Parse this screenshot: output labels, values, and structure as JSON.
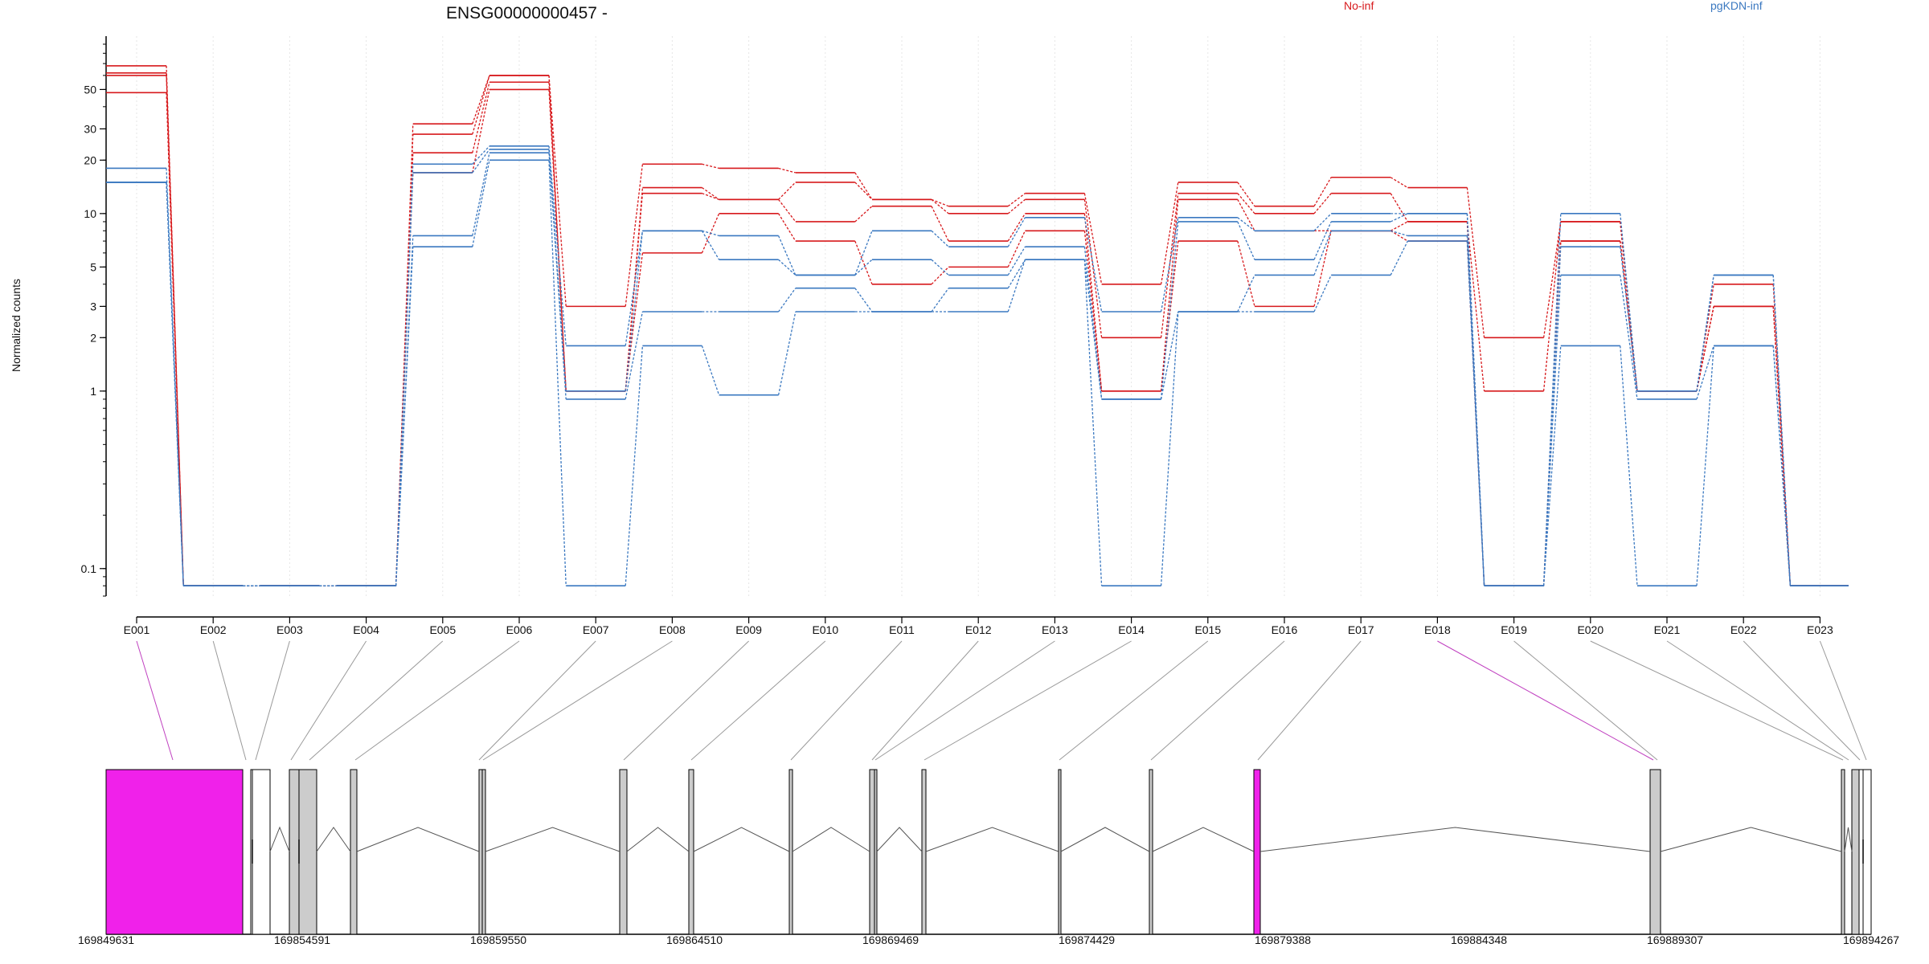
{
  "chart_data": {
    "type": "line",
    "title": "ENSG00000000457 -",
    "ylabel": "Normalized counts",
    "xlabel": "",
    "y_scale": "log",
    "ylim": [
      0.07,
      90
    ],
    "y_ticks": [
      0.1,
      1,
      2,
      3,
      5,
      10,
      20,
      30,
      50
    ],
    "y_tick_labels": [
      "0.1",
      "1",
      "2",
      "3",
      "5",
      "10",
      "20",
      "30",
      "50"
    ],
    "grid": "vertical, light",
    "legend": [
      {
        "name": "No-inf",
        "color": "#d7191c"
      },
      {
        "name": "pgKDN-inf",
        "color": "#3a78c0"
      }
    ],
    "categories": [
      "E001",
      "E002",
      "E003",
      "E004",
      "E005",
      "E006",
      "E007",
      "E008",
      "E009",
      "E010",
      "E011",
      "E012",
      "E013",
      "E014",
      "E015",
      "E016",
      "E017",
      "E018",
      "E019",
      "E020",
      "E021",
      "E022",
      "E023"
    ],
    "series": [
      {
        "group": "No-inf",
        "color": "#d7191c",
        "values": [
          68,
          0.08,
          0.08,
          0.08,
          32,
          60,
          3,
          19,
          18,
          17,
          12,
          11,
          13,
          4,
          15,
          11,
          16,
          14,
          2,
          9,
          1,
          4,
          0.08
        ]
      },
      {
        "group": "No-inf",
        "color": "#d7191c",
        "values": [
          62,
          0.08,
          0.08,
          0.08,
          28,
          60,
          1,
          14,
          12,
          15,
          12,
          10,
          12,
          2,
          13,
          10,
          13,
          9,
          1,
          9,
          1,
          3,
          0.08
        ]
      },
      {
        "group": "No-inf",
        "color": "#d7191c",
        "values": [
          60,
          0.08,
          0.08,
          0.08,
          22,
          55,
          1,
          13,
          12,
          9,
          11,
          7,
          10,
          1,
          12,
          8,
          8,
          9,
          0.08,
          7,
          1,
          3,
          0.08
        ]
      },
      {
        "group": "No-inf",
        "color": "#d7191c",
        "values": [
          48,
          0.08,
          0.08,
          0.08,
          17,
          50,
          1,
          6,
          10,
          7,
          4,
          5,
          8,
          1,
          7,
          3,
          8,
          7,
          0.08,
          7,
          1,
          3,
          0.08
        ]
      },
      {
        "group": "pgKDN-inf",
        "color": "#3a78c0",
        "values": [
          18,
          0.08,
          0.08,
          0.08,
          19,
          24,
          1.8,
          8,
          7.5,
          4.5,
          8,
          6.5,
          9.5,
          2.8,
          9.5,
          8,
          10,
          10,
          0.08,
          10,
          1,
          4.5,
          0.08
        ]
      },
      {
        "group": "pgKDN-inf",
        "color": "#3a78c0",
        "values": [
          15,
          0.08,
          0.08,
          0.08,
          17,
          23,
          1,
          8,
          5.5,
          4.5,
          5.5,
          4.5,
          6.5,
          0.9,
          9,
          5.5,
          9,
          10,
          0.08,
          6.5,
          1,
          4.5,
          0.08
        ]
      },
      {
        "group": "pgKDN-inf",
        "color": "#3a78c0",
        "values": [
          15,
          0.08,
          0.08,
          0.08,
          7.5,
          22,
          0.9,
          2.8,
          2.8,
          3.8,
          2.8,
          3.8,
          5.5,
          0.9,
          2.8,
          4.5,
          8,
          7.5,
          0.08,
          4.5,
          0.9,
          1.8,
          0.08
        ]
      },
      {
        "group": "pgKDN-inf",
        "color": "#3a78c0",
        "values": [
          15,
          0.08,
          0.08,
          0.08,
          6.5,
          20,
          0.08,
          1.8,
          0.95,
          2.8,
          2.8,
          2.8,
          5.5,
          0.08,
          2.8,
          2.8,
          4.5,
          7,
          0.08,
          1.8,
          0.08,
          1.8,
          0.08
        ]
      }
    ],
    "gene_model": {
      "coordinate_ticks": [
        "169849631",
        "169854591",
        "169859550",
        "169864510",
        "169869469",
        "169874429",
        "169879388",
        "169884348",
        "169889307",
        "169894267"
      ],
      "coordinate_values": [
        169849631,
        169854591,
        169859550,
        169864510,
        169869469,
        169874429,
        169879388,
        169884348,
        169889307,
        169894267
      ],
      "highlighted_exons": [
        "E001",
        "E018"
      ],
      "highlight_color": "#f021ea",
      "exon_color": "#cccccc"
    }
  }
}
